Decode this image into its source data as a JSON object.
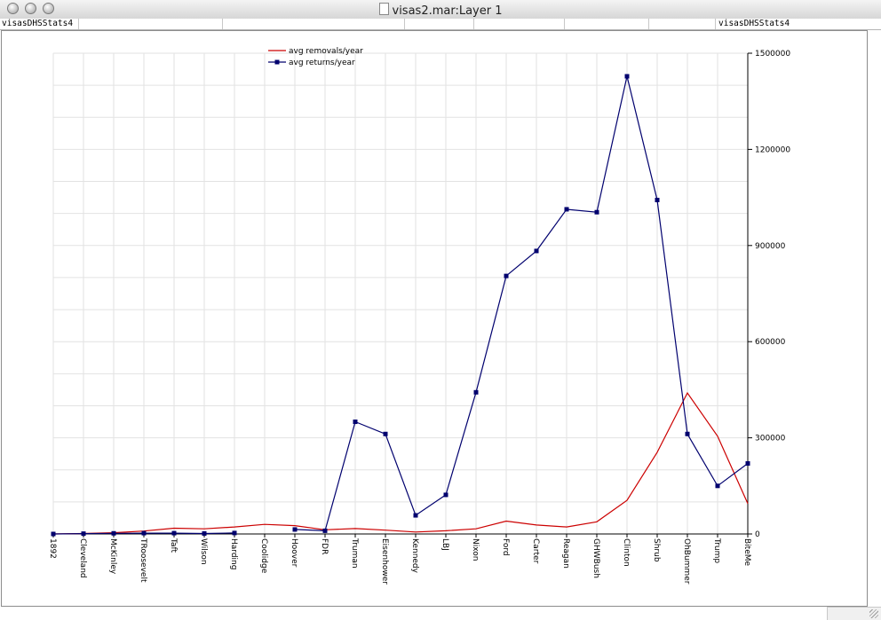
{
  "window": {
    "title": "visas2.mar:Layer 1"
  },
  "header": {
    "left_label": "visasDHSStats4",
    "right_label": "visasDHSStats4"
  },
  "chart_data": {
    "type": "line",
    "categories": [
      "1892",
      "Cleveland",
      "McKinley",
      "TRoosevelt",
      "Taft",
      "Wilson",
      "Harding",
      "Coolidge",
      "Hoover",
      "FDR",
      "Truman",
      "Eisenhower",
      "Kennedy",
      "LBJ",
      "Nixon",
      "Ford",
      "Carter",
      "Reagan",
      "GHWBush",
      "Clinton",
      "Shrub",
      "OhBummer",
      "Trump",
      "BiteMe"
    ],
    "series": [
      {
        "name": "avg removals/year",
        "color": "#cc0000",
        "marker": "none",
        "values": [
          0,
          1500,
          4000,
          9000,
          18000,
          16000,
          22000,
          30000,
          26000,
          13000,
          17000,
          12000,
          6000,
          10000,
          16000,
          40000,
          28000,
          22000,
          38000,
          105000,
          255000,
          440000,
          305000,
          95000
        ]
      },
      {
        "name": "avg returns/year",
        "color": "#00006e",
        "marker": "square",
        "values": [
          0,
          1000,
          2000,
          2500,
          2500,
          1500,
          3000,
          null,
          14000,
          10000,
          350000,
          312000,
          58000,
          122000,
          442000,
          805000,
          883000,
          1013000,
          1004000,
          1428000,
          1042000,
          312000,
          150000,
          220000
        ]
      }
    ],
    "ylim": [
      0,
      1500000
    ],
    "yticks": [
      "0",
      "300000",
      "600000",
      "900000",
      "1200000",
      "1500000"
    ],
    "xlabel": "",
    "ylabel": "",
    "grid": true,
    "y_axis_side": "right",
    "legend_position": "top-left"
  }
}
